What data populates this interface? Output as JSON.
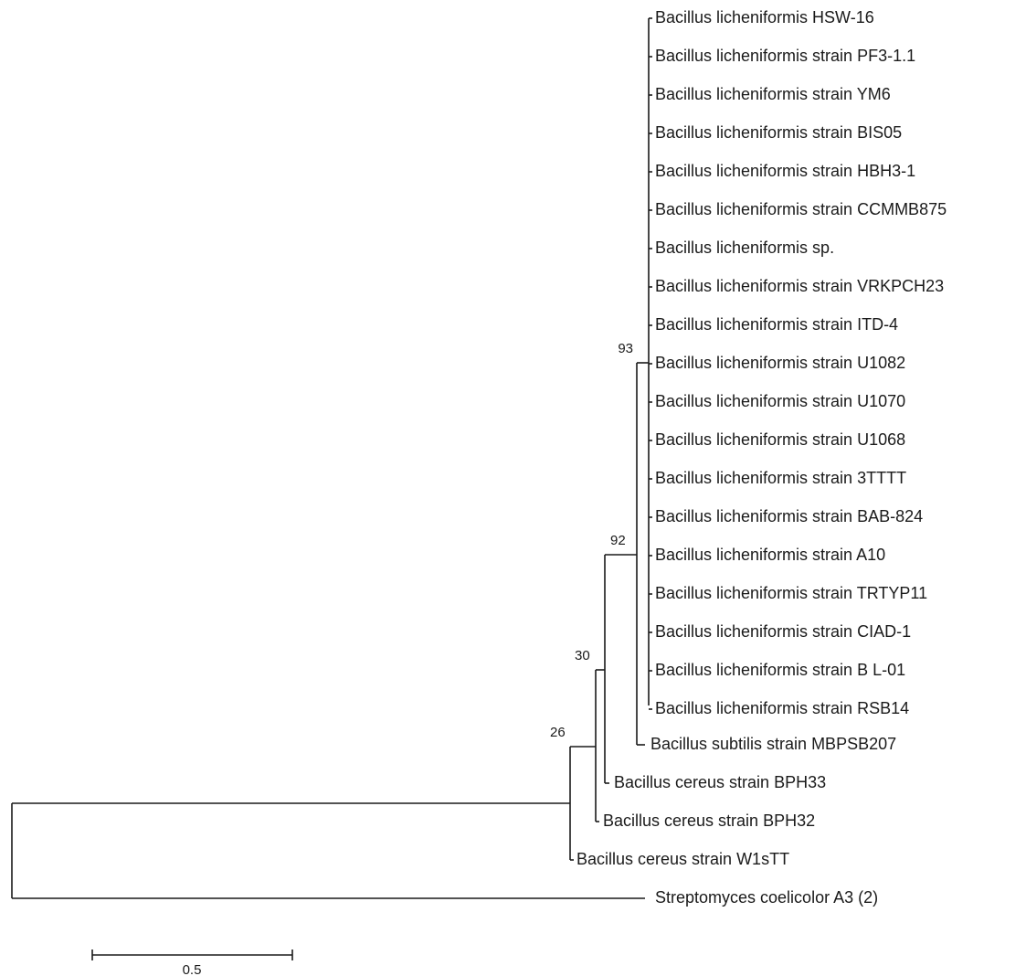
{
  "tree": {
    "taxa": [
      "Bacillus licheniformis HSW-16",
      "Bacillus licheniformis strain PF3-1.1",
      "Bacillus licheniformis strain YM6",
      "Bacillus licheniformis strain BIS05",
      "Bacillus licheniformis strain HBH3-1",
      "Bacillus licheniformis strain CCMMB875",
      "Bacillus licheniformis sp.",
      "Bacillus licheniformis strain VRKPCH23",
      "Bacillus licheniformis strain ITD-4",
      "Bacillus licheniformis strain U1082",
      "Bacillus licheniformis strain U1070",
      "Bacillus licheniformis strain U1068",
      "Bacillus licheniformis strain 3TTTT",
      "Bacillus licheniformis strain BAB-824",
      "Bacillus licheniformis strain A10",
      "Bacillus licheniformis strain TRTYP11",
      "Bacillus licheniformis strain CIAD-1",
      "Bacillus licheniformis strain B L-01",
      "Bacillus licheniformis strain RSB14",
      "Bacillus subtilis strain MBPSB207",
      "Bacillus cereus strain BPH33",
      "Bacillus cereus strain BPH32",
      "Bacillus cereus strain W1sTT",
      "Streptomyces coelicolor A3 (2)"
    ],
    "bootstrap": [
      "93",
      "92",
      "30",
      "26"
    ],
    "scale_bar": {
      "label": "0.5",
      "value": 0.5
    }
  }
}
